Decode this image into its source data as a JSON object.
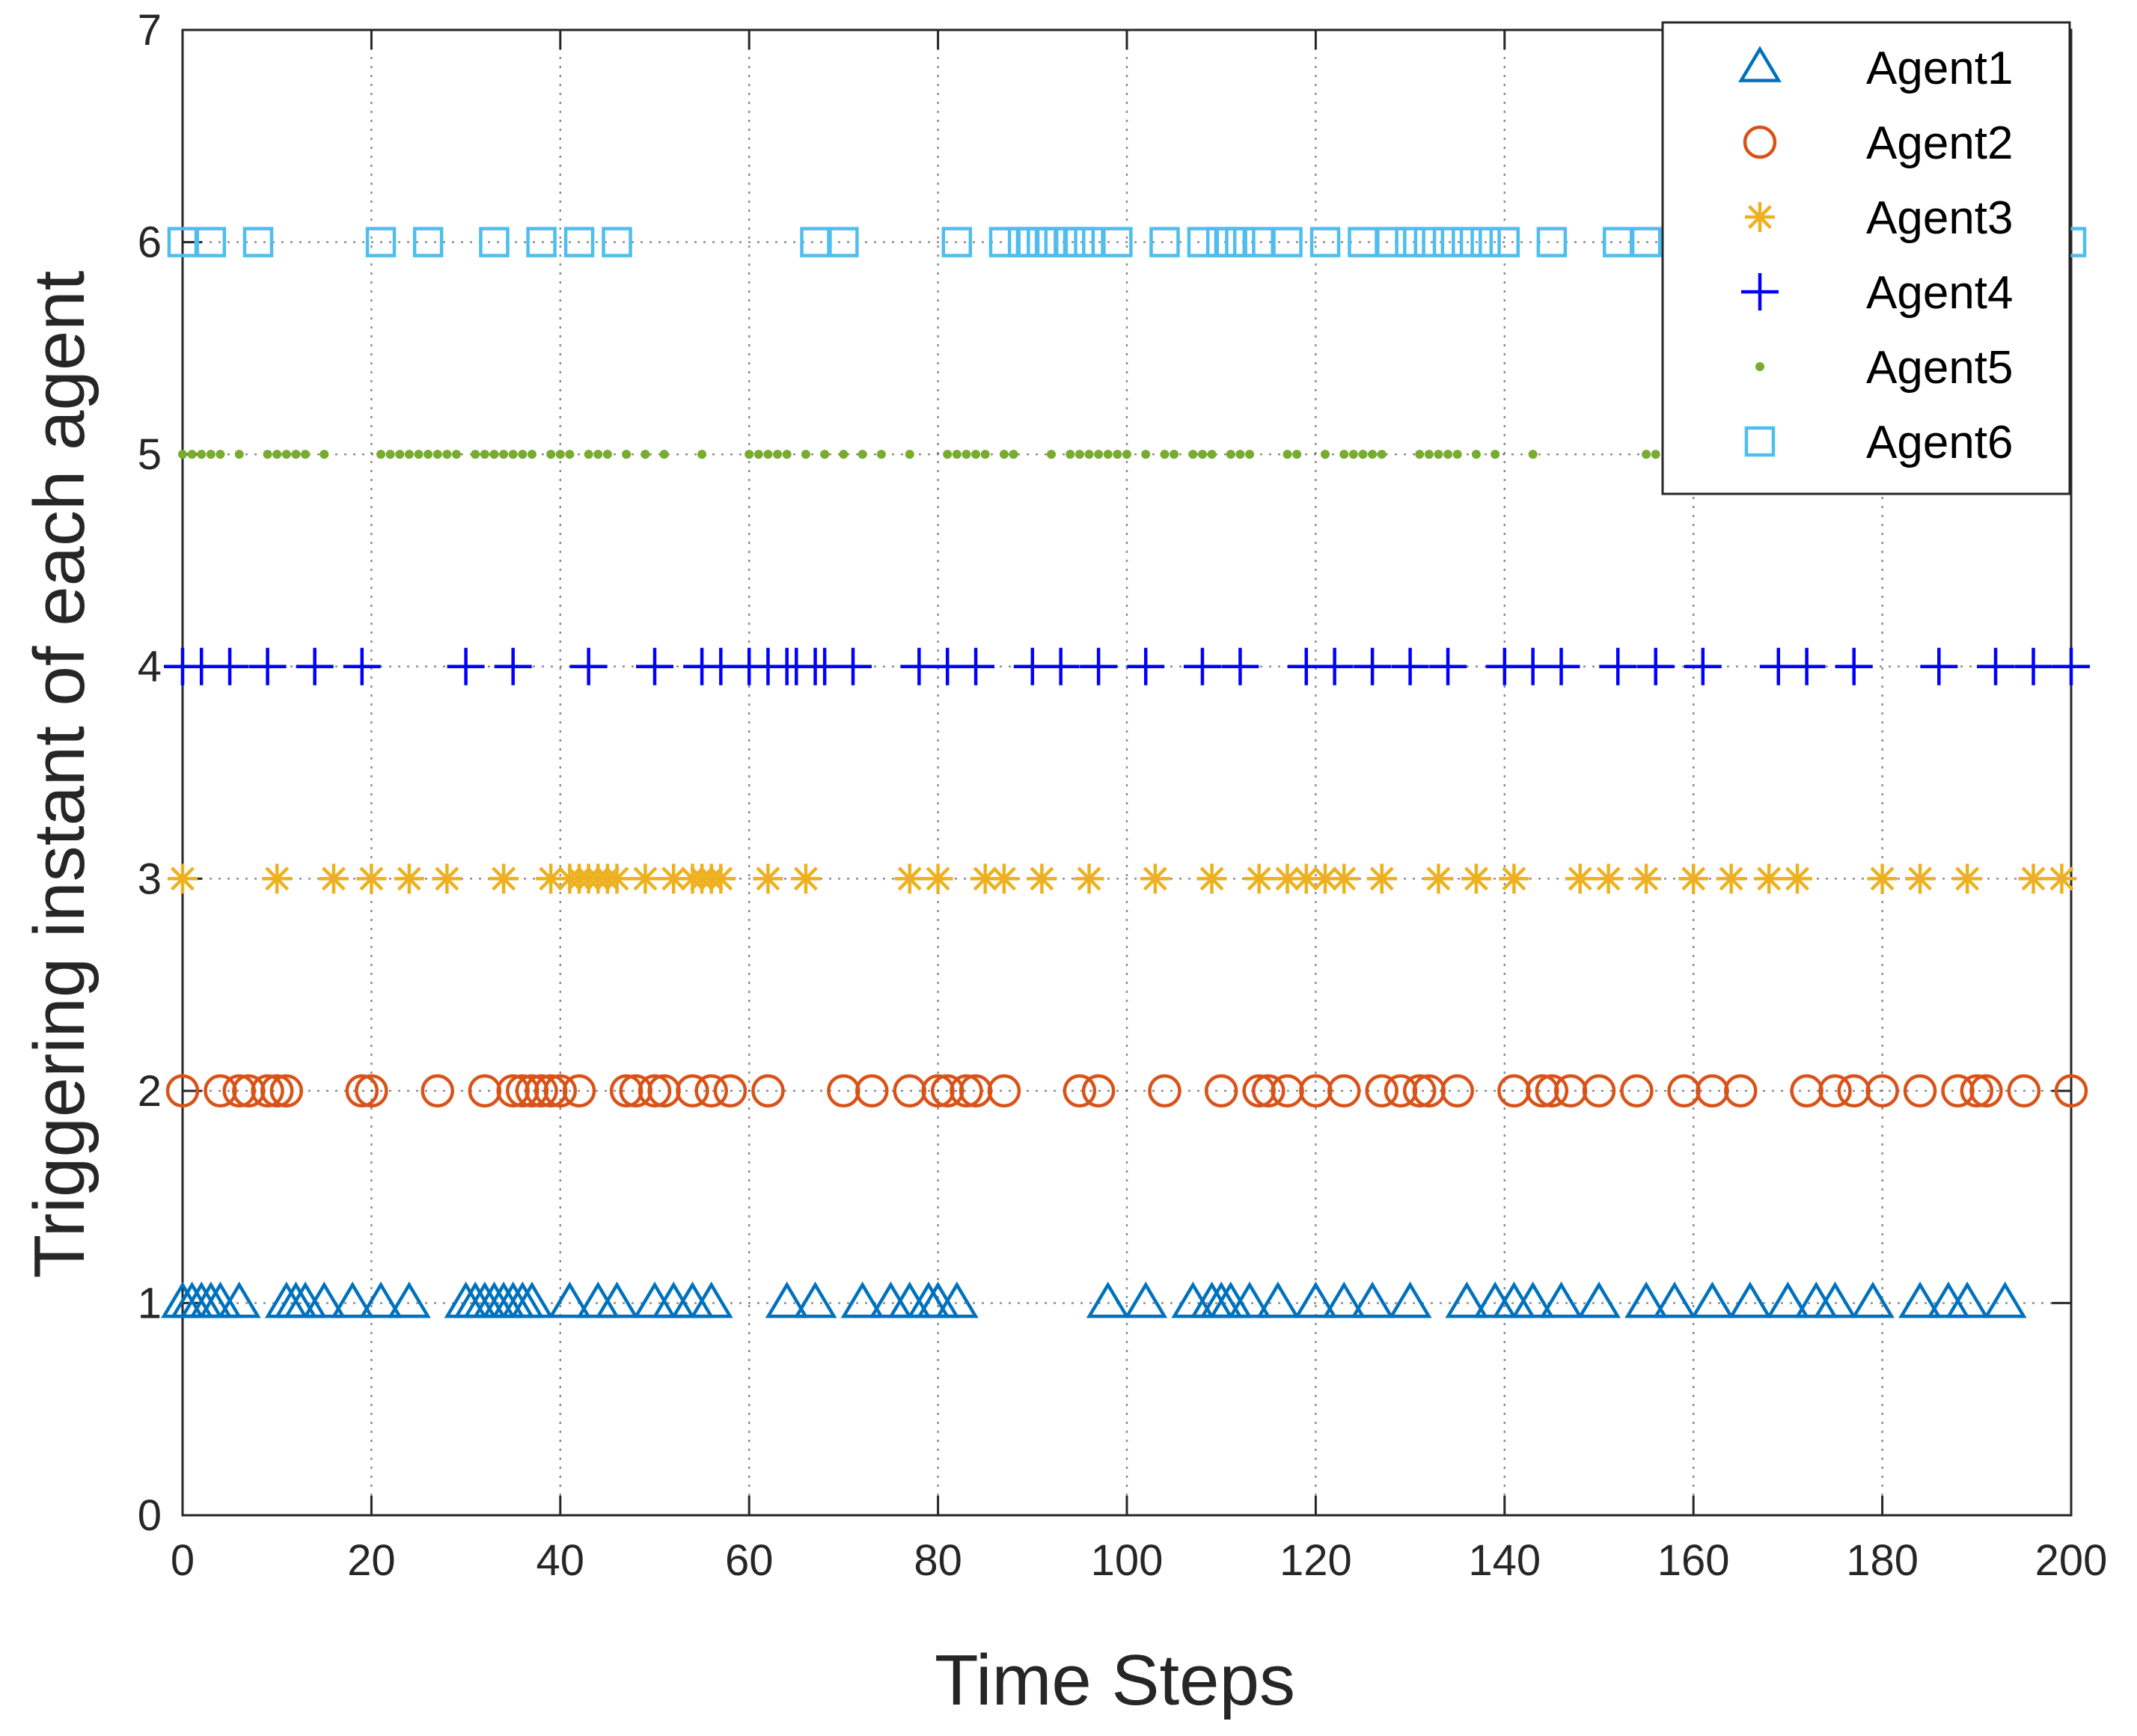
{
  "chart_data": {
    "type": "scatter",
    "title": "",
    "xlabel": "Time Steps",
    "ylabel": "Triggering instant of each agent",
    "xlim": [
      0,
      200
    ],
    "ylim": [
      0,
      7
    ],
    "xticks": [
      0,
      20,
      40,
      60,
      80,
      100,
      120,
      140,
      160,
      180,
      200
    ],
    "yticks": [
      0,
      1,
      2,
      3,
      4,
      5,
      6,
      7
    ],
    "grid": true,
    "legend_position": "top-right",
    "series": [
      {
        "name": "Agent1",
        "y": 1,
        "marker": "triangle",
        "color": "#0072BD",
        "x": [
          0,
          1,
          2,
          3,
          4,
          6,
          11,
          12,
          13,
          15,
          18,
          21,
          24,
          30,
          31,
          32,
          33,
          34,
          35,
          36,
          37,
          41,
          44,
          46,
          50,
          52,
          54,
          56,
          64,
          67,
          72,
          75,
          77,
          79,
          80,
          82,
          98,
          102,
          107,
          109,
          110,
          111,
          113,
          116,
          120,
          123,
          126,
          130,
          136,
          139,
          141,
          143,
          146,
          150,
          155,
          158,
          162,
          166,
          170,
          173,
          175,
          179,
          184,
          187,
          189,
          193
        ]
      },
      {
        "name": "Agent2",
        "y": 2,
        "marker": "circle",
        "color": "#D95319",
        "x": [
          0,
          4,
          6,
          7,
          9,
          10,
          11,
          19,
          20,
          27,
          32,
          35,
          36,
          37,
          38,
          39,
          40,
          42,
          47,
          48,
          50,
          51,
          54,
          56,
          58,
          62,
          70,
          73,
          77,
          80,
          81,
          83,
          84,
          87,
          95,
          97,
          104,
          110,
          114,
          115,
          117,
          120,
          123,
          127,
          129,
          131,
          132,
          135,
          141,
          144,
          145,
          147,
          150,
          154,
          159,
          162,
          165,
          172,
          175,
          177,
          180,
          184,
          188,
          190,
          191,
          195,
          200
        ]
      },
      {
        "name": "Agent3",
        "y": 3,
        "marker": "asterisk",
        "color": "#EDB120",
        "x": [
          0,
          10,
          16,
          20,
          24,
          28,
          34,
          39,
          41,
          42,
          43,
          44,
          45,
          46,
          49,
          52,
          54,
          55,
          56,
          57,
          62,
          66,
          77,
          80,
          85,
          87,
          91,
          96,
          103,
          109,
          114,
          117,
          119,
          121,
          123,
          127,
          133,
          137,
          141,
          148,
          151,
          155,
          160,
          164,
          168,
          171,
          180,
          184,
          189,
          196,
          199
        ]
      },
      {
        "name": "Agent4",
        "y": 4,
        "marker": "plus",
        "color": "#0000FF",
        "x": [
          0,
          2,
          5,
          9,
          14,
          19,
          30,
          35,
          43,
          50,
          55,
          57,
          60,
          62,
          64,
          65,
          67,
          68,
          71,
          78,
          81,
          84,
          90,
          93,
          97,
          102,
          108,
          112,
          119,
          122,
          126,
          130,
          134,
          140,
          143,
          146,
          152,
          156,
          161,
          169,
          172,
          177,
          186,
          192,
          196,
          200
        ]
      },
      {
        "name": "Agent5",
        "y": 5,
        "marker": "dot",
        "color": "#77AC30",
        "x": [
          0,
          1,
          2,
          3,
          4,
          6,
          9,
          10,
          11,
          12,
          13,
          15,
          21,
          22,
          23,
          24,
          25,
          26,
          27,
          28,
          29,
          31,
          32,
          33,
          34,
          35,
          36,
          37,
          39,
          40,
          41,
          43,
          44,
          45,
          47,
          49,
          51,
          55,
          60,
          61,
          62,
          63,
          64,
          66,
          68,
          70,
          72,
          74,
          77,
          81,
          82,
          83,
          84,
          85,
          87,
          88,
          92,
          94,
          95,
          96,
          97,
          98,
          99,
          100,
          102,
          104,
          105,
          107,
          108,
          109,
          111,
          112,
          113,
          117,
          118,
          121,
          123,
          124,
          125,
          126,
          127,
          131,
          132,
          133,
          134,
          135,
          137,
          139,
          143,
          155,
          156
        ]
      },
      {
        "name": "Agent6",
        "y": 6,
        "marker": "square",
        "color": "#4DBEEE",
        "x": [
          0,
          3,
          8,
          21,
          26,
          33,
          38,
          42,
          46,
          67,
          70,
          82,
          87,
          89,
          90,
          91,
          92,
          94,
          95,
          96,
          99,
          104,
          108,
          110,
          111,
          112,
          114,
          117,
          121,
          125,
          128,
          130,
          132,
          134,
          136,
          138,
          140,
          145,
          152,
          155,
          200
        ]
      }
    ]
  }
}
